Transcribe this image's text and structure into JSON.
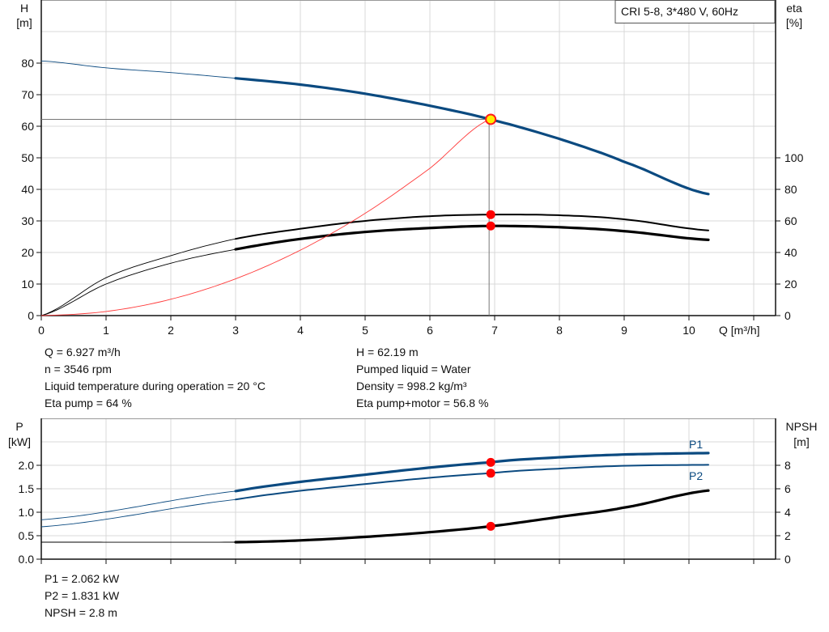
{
  "legend_box": "CRI 5-8, 3*480 V, 60Hz",
  "chart_data": [
    {
      "type": "line",
      "title": "",
      "xlabel": "Q [m³/h]",
      "ylabel_left": [
        "H",
        "[m]"
      ],
      "ylabel_right": [
        "eta",
        "[%]"
      ],
      "xlim": [
        0,
        11.35
      ],
      "ylim_left": [
        0,
        100
      ],
      "ylim_right": [
        0,
        200
      ],
      "x_ticks": [
        "0",
        "1",
        "2",
        "3",
        "4",
        "5",
        "6",
        "7",
        "8",
        "9",
        "10"
      ],
      "y_ticks_left": [
        "0",
        "10",
        "20",
        "30",
        "40",
        "50",
        "60",
        "70",
        "80"
      ],
      "y_ticks_right": [
        "0",
        "20",
        "40",
        "60",
        "80",
        "100"
      ],
      "grid": true,
      "preferred_range_start_q": 3,
      "series": [
        {
          "id": "head",
          "axis": "left",
          "color": "#0b4a80",
          "x": [
            0,
            1,
            2,
            3,
            4,
            5,
            6,
            6.927,
            8,
            9,
            10.3
          ],
          "y": [
            80.7,
            78.5,
            77,
            75.2,
            73.2,
            70.3,
            66.5,
            62.19,
            56,
            48.7,
            38.5
          ]
        },
        {
          "id": "eta-pump",
          "axis": "right",
          "color": "#000000",
          "x": [
            0,
            1,
            2,
            3,
            4,
            5,
            6,
            6.927,
            8,
            9,
            10.3
          ],
          "y": [
            0,
            24,
            38,
            48.6,
            55,
            60,
            63,
            64,
            63.6,
            61,
            54
          ]
        },
        {
          "id": "eta-pump-motor",
          "axis": "right",
          "color": "#000000",
          "x": [
            0,
            1,
            2,
            3,
            4,
            5,
            6,
            6.927,
            8,
            9,
            10.3
          ],
          "y": [
            0,
            20,
            33.2,
            42,
            48.6,
            53,
            55.5,
            56.8,
            56,
            53.5,
            48
          ]
        },
        {
          "id": "system-curve",
          "axis": "left",
          "color": "#ff3b3b",
          "x": [
            0,
            1,
            2,
            3,
            4,
            5,
            6,
            6.927
          ],
          "y": [
            0,
            1.3,
            5.18,
            11.66,
            20.74,
            32.4,
            46.66,
            62.19
          ]
        }
      ],
      "duty_point": {
        "q": 6.927,
        "h": 62.19,
        "eta_pump": 64,
        "eta_total": 56.8
      }
    },
    {
      "type": "line",
      "title": "",
      "ylabel_left": [
        "P",
        "[kW]"
      ],
      "ylabel_right": [
        "NPSH",
        "[m]"
      ],
      "xlim": [
        0,
        11.35
      ],
      "ylim_left": [
        0,
        3
      ],
      "ylim_right": [
        0,
        12
      ],
      "y_ticks_left": [
        "0.0",
        "0.5",
        "1.0",
        "1.5",
        "2.0"
      ],
      "y_ticks_right": [
        "0",
        "2",
        "4",
        "6",
        "8"
      ],
      "grid": true,
      "preferred_range_start_q": 3,
      "series": [
        {
          "id": "p1",
          "name": "P1",
          "axis": "left",
          "color": "#0b4a80",
          "x": [
            0,
            3,
            5,
            6.927,
            8,
            9,
            10.3
          ],
          "y": [
            0.84,
            1.45,
            1.8,
            2.062,
            2.17,
            2.23,
            2.26
          ]
        },
        {
          "id": "p2",
          "name": "P2",
          "axis": "left",
          "color": "#0b4a80",
          "x": [
            0,
            3,
            5,
            6.927,
            8,
            9,
            10.3
          ],
          "y": [
            0.69,
            1.27,
            1.6,
            1.831,
            1.93,
            1.99,
            2.01
          ]
        },
        {
          "id": "npsh",
          "axis": "right",
          "color": "#000000",
          "x": [
            0,
            3,
            4,
            5,
            6,
            6.927,
            8,
            9,
            10.3
          ],
          "y": [
            1.45,
            1.45,
            1.6,
            1.9,
            2.3,
            2.8,
            3.6,
            4.4,
            5.85
          ]
        }
      ],
      "duty_point": {
        "q": 6.927,
        "p1": 2.062,
        "p2": 1.831,
        "npsh": 2.8
      }
    }
  ],
  "info_top_left": [
    "Q = 6.927 m³/h",
    "n = 3546 rpm",
    "Liquid temperature during operation = 20 °C",
    "Eta pump = 64 %"
  ],
  "info_top_right": [
    "H = 62.19 m",
    "Pumped liquid = Water",
    "Density = 998.2 kg/m³",
    "Eta pump+motor = 56.8 %"
  ],
  "info_bottom": [
    "P1 = 2.062 kW",
    "P2 = 1.831 kW",
    "NPSH = 2.8 m"
  ]
}
